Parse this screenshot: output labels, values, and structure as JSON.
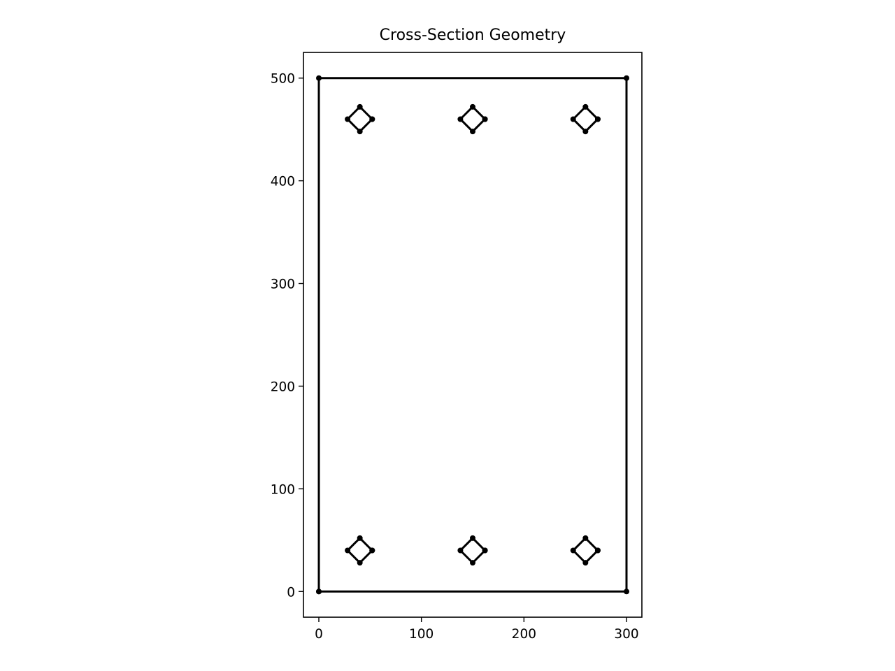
{
  "chart_data": {
    "type": "scatter",
    "title": "Cross-Section Geometry",
    "xlabel": "",
    "ylabel": "",
    "xlim": [
      -15,
      315
    ],
    "ylim": [
      -25,
      525
    ],
    "xticks": [
      0,
      100,
      200,
      300
    ],
    "yticks": [
      0,
      100,
      200,
      300,
      400,
      500
    ],
    "grid": false,
    "aspect": "equal",
    "line_color": "#000000",
    "series": [
      {
        "points": [
          [
            0,
            0
          ],
          [
            300,
            0
          ],
          [
            300,
            500
          ],
          [
            0,
            500
          ],
          [
            0,
            0
          ]
        ]
      },
      {
        "points": [
          [
            52,
            40
          ],
          [
            40,
            52
          ],
          [
            28,
            40
          ],
          [
            40,
            28
          ],
          [
            52,
            40
          ]
        ]
      },
      {
        "points": [
          [
            162,
            40
          ],
          [
            150,
            52
          ],
          [
            138,
            40
          ],
          [
            150,
            28
          ],
          [
            162,
            40
          ]
        ]
      },
      {
        "points": [
          [
            272,
            40
          ],
          [
            260,
            52
          ],
          [
            248,
            40
          ],
          [
            260,
            28
          ],
          [
            272,
            40
          ]
        ]
      },
      {
        "points": [
          [
            52,
            460
          ],
          [
            40,
            472
          ],
          [
            28,
            460
          ],
          [
            40,
            448
          ],
          [
            52,
            460
          ]
        ]
      },
      {
        "points": [
          [
            162,
            460
          ],
          [
            150,
            472
          ],
          [
            138,
            460
          ],
          [
            150,
            448
          ],
          [
            162,
            460
          ]
        ]
      },
      {
        "points": [
          [
            272,
            460
          ],
          [
            260,
            472
          ],
          [
            248,
            460
          ],
          [
            260,
            448
          ],
          [
            272,
            460
          ]
        ]
      }
    ]
  }
}
